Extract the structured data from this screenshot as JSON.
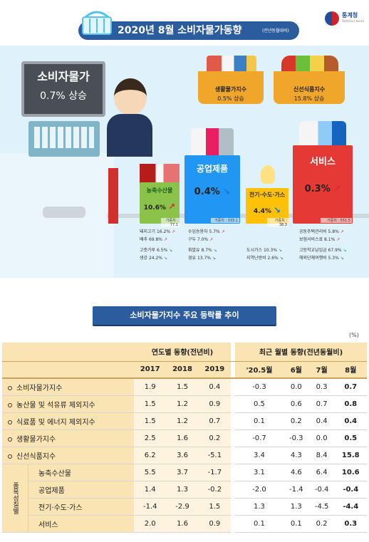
{
  "header": {
    "title": "2020년 8월 소비자물가동향",
    "subtitle": "(전년동월대비)",
    "logo_text": "통계청",
    "logo_sub": "Statistics Korea"
  },
  "register": {
    "title": "소비자물가",
    "value": "0.7% 상승"
  },
  "baskets": [
    {
      "name": "생활물가지수",
      "value": "0.5% 상승"
    },
    {
      "name": "신선식품지수",
      "value": "15.8% 상승"
    }
  ],
  "categories": {
    "agri": {
      "name": "농축수산물",
      "value": "10.6%",
      "weight": "가중치 : 77.1",
      "arrow": "↗",
      "items": [
        {
          "label": "돼지고기 16.2%",
          "dir": "up"
        },
        {
          "label": "배추 69.8%",
          "dir": "up"
        },
        {
          "label": "고춧가루 6.5%",
          "dir": "down"
        },
        {
          "label": "생강 24.2%",
          "dir": "down"
        }
      ]
    },
    "ind": {
      "name": "공업제품",
      "value": "0.4%",
      "weight": "가중치 : 333.1",
      "arrow": "↘",
      "items": [
        {
          "label": "수입승용차 5.7%",
          "dir": "up"
        },
        {
          "label": "구두 7.0%",
          "dir": "up"
        },
        {
          "label": "휘발유 8.7%",
          "dir": "down"
        },
        {
          "label": "경유 13.7%",
          "dir": "down"
        }
      ]
    },
    "elec": {
      "name": "전기·수도·가스",
      "value": "4.4%",
      "weight": "가중치 : 38.3",
      "arrow": "↘",
      "items": [
        {
          "label": "도시가스 10.3%",
          "dir": "down"
        },
        {
          "label": "지역난방비 2.6%",
          "dir": "down"
        }
      ]
    },
    "svc": {
      "name": "서비스",
      "value": "0.3%",
      "weight": "가중치 : 551.5",
      "arrow": "↗",
      "items": [
        {
          "label": "공동주택관리비 5.8%",
          "dir": "up"
        },
        {
          "label": "보험서비스료 8.1%",
          "dir": "up"
        },
        {
          "label": "고등학교납입금 67.9%",
          "dir": "down"
        },
        {
          "label": "해외단체여행비 5.3%",
          "dir": "down"
        }
      ]
    }
  },
  "section_title": "소비자물가지수 주요 등락률 추이",
  "unit": "(%)",
  "table": {
    "group_annual": "연도별 동향(전년비)",
    "group_monthly": "최근 월별 동향(전년동월비)",
    "columns": [
      "2017",
      "2018",
      "2019",
      "'20.5월",
      "6월",
      "7월",
      "8월"
    ],
    "group_label": "품목성질별",
    "rows": [
      {
        "label": "소비자물가지수",
        "values": [
          "1.9",
          "1.5",
          "0.4",
          "-0.3",
          "0.0",
          "0.3",
          "0.7"
        ]
      },
      {
        "label": "농산물 및 석유류 제외지수",
        "values": [
          "1.5",
          "1.2",
          "0.9",
          "0.5",
          "0.6",
          "0.7",
          "0.8"
        ]
      },
      {
        "label": "식료품 및 에너지 제외지수",
        "values": [
          "1.5",
          "1.2",
          "0.7",
          "0.1",
          "0.2",
          "0.4",
          "0.4"
        ]
      },
      {
        "label": "생활물가지수",
        "values": [
          "2.5",
          "1.6",
          "0.2",
          "-0.7",
          "-0.3",
          "0.0",
          "0.5"
        ]
      },
      {
        "label": "신선식품지수",
        "values": [
          "6.2",
          "3.6",
          "-5.1",
          "3.4",
          "4.3",
          "8.4",
          "15.8"
        ]
      }
    ],
    "group_rows": [
      {
        "label": "농축수산물",
        "values": [
          "5.5",
          "3.7",
          "-1.7",
          "3.1",
          "4.6",
          "6.4",
          "10.6"
        ]
      },
      {
        "label": "공업제품",
        "values": [
          "1.4",
          "1.3",
          "-0.2",
          "-2.0",
          "-1.4",
          "-0.4",
          "-0.4"
        ]
      },
      {
        "label": "전기·수도·가스",
        "values": [
          "-1.4",
          "-2.9",
          "1.5",
          "1.3",
          "1.3",
          "-4.5",
          "-4.4"
        ]
      },
      {
        "label": "서비스",
        "values": [
          "2.0",
          "1.6",
          "0.9",
          "0.1",
          "0.1",
          "0.2",
          "0.3"
        ]
      }
    ]
  },
  "colors": {
    "banner": "#2b5d9e",
    "header_fill": "#fbe4b3",
    "agri": "#8bc34a",
    "industry": "#2196f3",
    "utilities": "#ffc107",
    "services": "#e53935"
  }
}
